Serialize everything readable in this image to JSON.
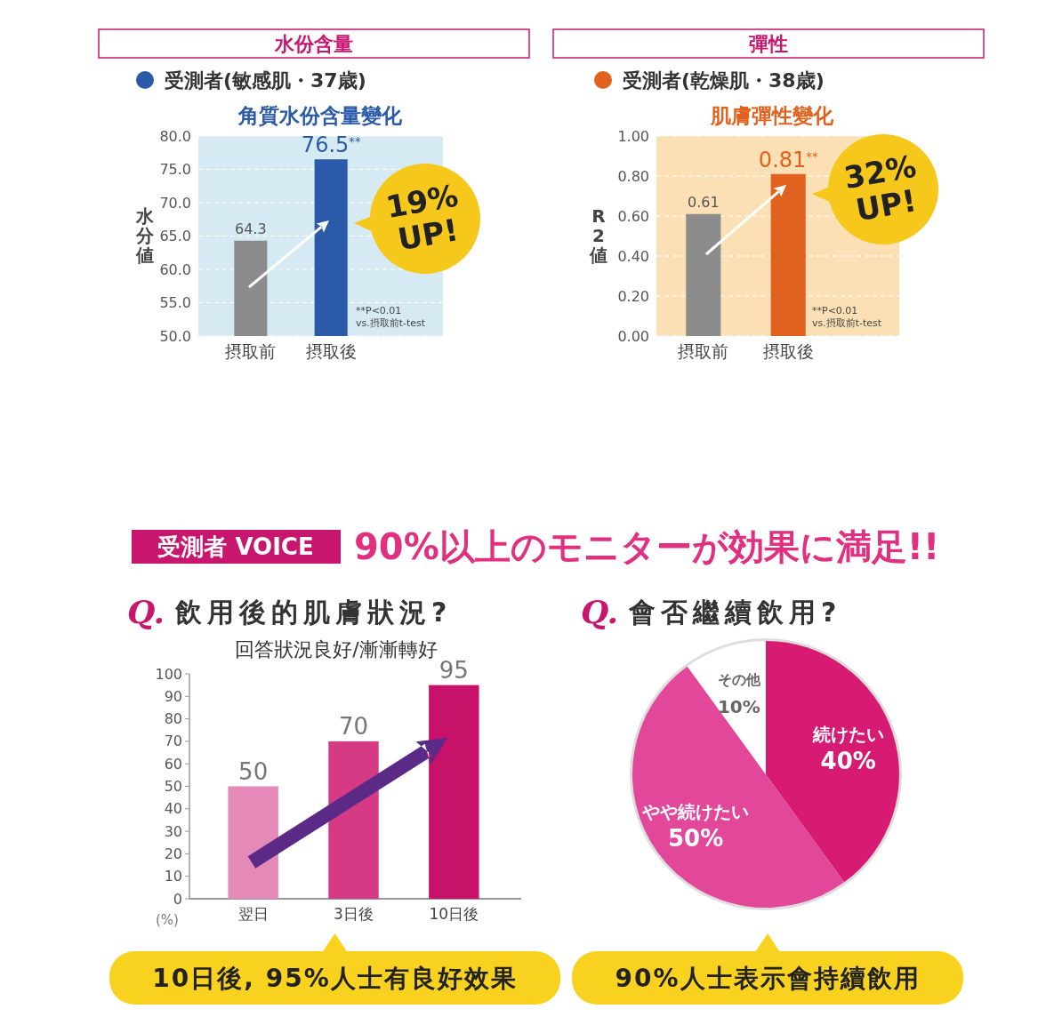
{
  "chart_data": [
    {
      "type": "bar",
      "title": "水份含量",
      "subtitle": "角質水份含量變化",
      "ylabel": "水分値",
      "categories": [
        "摂取前",
        "摂取後"
      ],
      "values": [
        64.3,
        76.5
      ],
      "colors": [
        "#8c8c8c",
        "#2a5aa8"
      ],
      "value_labels": [
        "64.3",
        "76.5$^{**}$"
      ],
      "ylim": [
        50,
        80
      ],
      "yticks": [
        {
          "value": 50,
          "label": "50.0"
        },
        {
          "value": 55,
          "label": "55.0"
        },
        {
          "value": 60,
          "label": "60.0"
        },
        {
          "value": 65,
          "label": "65.0"
        },
        {
          "value": 70,
          "label": "70.0"
        },
        {
          "value": 75,
          "label": "75.0"
        },
        {
          "value": 80,
          "label": "80.0"
        }
      ],
      "grid": "y",
      "annotations": [
        "受測者(敏感肌・37歳)",
        "19% UP!",
        "**P<0.01 vs.摂取前t-test"
      ]
    },
    {
      "type": "bar",
      "title": "彈性",
      "subtitle": "肌膚彈性變化",
      "ylabel": "R2値",
      "categories": [
        "摂取前",
        "摂取後"
      ],
      "values": [
        0.61,
        0.81
      ],
      "colors": [
        "#8c8c8c",
        "#e0621e"
      ],
      "value_labels": [
        "0.61",
        "0.81$^{**}$"
      ],
      "ylim": [
        0,
        1
      ],
      "yticks": [
        {
          "value": 0,
          "label": "0.00"
        },
        {
          "value": 0.2,
          "label": "0.20"
        },
        {
          "value": 0.4,
          "label": "0.40"
        },
        {
          "value": 0.6,
          "label": "0.60"
        },
        {
          "value": 0.8,
          "label": "0.80"
        },
        {
          "value": 1,
          "label": "1.00"
        }
      ],
      "grid": "y",
      "annotations": [
        "受測者(乾燥肌・38歳)",
        "32% UP!",
        "**P<0.01 vs.摂取前t-test"
      ]
    },
    {
      "type": "bar",
      "title": "Q. 飲用後的肌膚狀況?",
      "subtitle": "回答狀況良好/漸漸轉好",
      "ylabel": "(%)",
      "categories": [
        "翌日",
        "3日後",
        "10日後"
      ],
      "values": [
        50,
        70,
        95
      ],
      "colors": [
        "#e58ab8",
        "#d63a85",
        "#c8126a"
      ],
      "data_labels": true,
      "ylim": [
        0,
        100
      ],
      "yticks": [
        0,
        10,
        20,
        30,
        40,
        50,
        60,
        70,
        80,
        90,
        100
      ],
      "annotations": [
        "受測者 VOICE",
        "90%以上のモニターが効果に満足!!",
        "10日後, 95%人士有良好效果"
      ]
    },
    {
      "type": "pie",
      "title": "Q. 會否繼續飲用?",
      "categories": [
        "続けたい",
        "やや続けたい",
        "その他"
      ],
      "values": [
        40,
        50,
        10
      ],
      "colors": [
        "#d81b72",
        "#e2479a",
        "#ffffff"
      ],
      "value_labels": [
        "40%",
        "50%",
        "10%"
      ],
      "annotations": [
        "90%人士表示會持續飲用"
      ]
    }
  ]
}
